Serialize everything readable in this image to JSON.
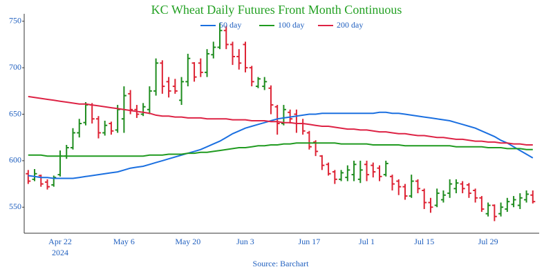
{
  "chart_data": {
    "type": "ohlc",
    "title": "KC Wheat Daily Futures Front Month Continuous",
    "source": "Source: Barchart",
    "year_label": "2024",
    "categories": [
      null,
      null,
      null,
      null,
      null,
      "Apr 22",
      null,
      null,
      null,
      null,
      null,
      null,
      null,
      null,
      null,
      "May 6",
      null,
      null,
      null,
      null,
      null,
      null,
      null,
      null,
      null,
      "May 20",
      null,
      null,
      null,
      null,
      null,
      null,
      null,
      null,
      "Jun 3",
      null,
      null,
      null,
      null,
      null,
      null,
      null,
      null,
      null,
      "Jun 17",
      null,
      null,
      null,
      null,
      null,
      null,
      null,
      null,
      "Jul 1",
      null,
      null,
      null,
      null,
      null,
      null,
      null,
      null,
      "Jul 15",
      null,
      null,
      null,
      null,
      null,
      null,
      null,
      null,
      null,
      "Jul 29",
      null,
      null,
      null,
      null,
      null,
      null,
      null
    ],
    "open": [
      586,
      580,
      584,
      577,
      574,
      585,
      605,
      614,
      630,
      641,
      660,
      645,
      630,
      640,
      633,
      645,
      672,
      655,
      650,
      655,
      675,
      705,
      685,
      680,
      665,
      685,
      705,
      705,
      695,
      714,
      722,
      740,
      725,
      712,
      725,
      700,
      680,
      680,
      678,
      658,
      640,
      652,
      650,
      640,
      630,
      620,
      605,
      596,
      588,
      580,
      582,
      585,
      580,
      596,
      595,
      592,
      585,
      583,
      578,
      572,
      562,
      578,
      568,
      555,
      552,
      558,
      565,
      570,
      575,
      574,
      568,
      560,
      543,
      552,
      543,
      548,
      553,
      552,
      558,
      563
    ],
    "high": [
      590,
      591,
      585,
      580,
      584,
      611,
      617,
      635,
      645,
      663,
      662,
      648,
      643,
      642,
      660,
      680,
      676,
      660,
      662,
      680,
      710,
      708,
      690,
      688,
      690,
      715,
      706,
      710,
      720,
      728,
      748,
      745,
      728,
      720,
      728,
      702,
      690,
      690,
      681,
      660,
      660,
      655,
      655,
      645,
      632,
      622,
      606,
      598,
      590,
      590,
      595,
      600,
      600,
      600,
      598,
      595,
      600,
      585,
      580,
      575,
      585,
      580,
      570,
      560,
      570,
      568,
      580,
      580,
      578,
      576,
      570,
      562,
      555,
      553,
      555,
      560,
      562,
      565,
      568,
      568
    ],
    "low": [
      575,
      578,
      572,
      569,
      572,
      583,
      602,
      612,
      625,
      638,
      640,
      624,
      627,
      628,
      630,
      630,
      650,
      646,
      648,
      650,
      670,
      672,
      668,
      672,
      660,
      680,
      685,
      690,
      690,
      710,
      720,
      720,
      703,
      698,
      695,
      680,
      678,
      676,
      650,
      628,
      638,
      640,
      630,
      628,
      612,
      605,
      590,
      584,
      575,
      578,
      578,
      578,
      576,
      578,
      582,
      578,
      583,
      568,
      563,
      558,
      560,
      565,
      548,
      544,
      550,
      555,
      560,
      565,
      565,
      560,
      555,
      545,
      540,
      535,
      540,
      545,
      550,
      548,
      555,
      554
    ],
    "close": [
      578,
      586,
      575,
      572,
      582,
      605,
      614,
      630,
      640,
      660,
      645,
      630,
      638,
      632,
      655,
      670,
      655,
      650,
      658,
      675,
      705,
      680,
      675,
      675,
      685,
      710,
      690,
      695,
      715,
      722,
      740,
      725,
      712,
      705,
      700,
      685,
      688,
      685,
      660,
      640,
      655,
      645,
      640,
      632,
      615,
      610,
      595,
      586,
      580,
      587,
      590,
      596,
      590,
      585,
      588,
      583,
      597,
      575,
      572,
      562,
      578,
      570,
      555,
      550,
      565,
      563,
      575,
      576,
      570,
      565,
      560,
      548,
      552,
      540,
      550,
      556,
      558,
      560,
      564,
      556
    ],
    "up_color": "#1e8c1e",
    "down_color": "#dd2233",
    "series": [
      {
        "name": "50 day",
        "color": "#1a6fe0",
        "values": [
          584,
          583,
          582,
          582,
          581,
          581,
          581,
          581,
          582,
          583,
          584,
          585,
          586,
          587,
          588,
          590,
          592,
          593,
          594,
          596,
          598,
          600,
          602,
          604,
          606,
          608,
          610,
          612,
          615,
          618,
          621,
          625,
          629,
          632,
          635,
          637,
          639,
          641,
          643,
          645,
          646,
          647,
          648,
          649,
          650,
          650,
          651,
          651,
          651,
          651,
          651,
          651,
          651,
          651,
          651,
          652,
          652,
          651,
          651,
          650,
          649,
          648,
          647,
          646,
          645,
          644,
          643,
          641,
          639,
          637,
          635,
          632,
          629,
          626,
          622,
          619,
          615,
          611,
          607,
          603
        ]
      },
      {
        "name": "100 day",
        "color": "#1f9a1f",
        "values": [
          606,
          606,
          606,
          605,
          605,
          605,
          605,
          605,
          605,
          605,
          605,
          605,
          605,
          605,
          605,
          605,
          605,
          605,
          605,
          606,
          606,
          606,
          607,
          607,
          607,
          608,
          608,
          609,
          609,
          610,
          611,
          612,
          613,
          614,
          614,
          615,
          616,
          616,
          617,
          617,
          618,
          618,
          619,
          619,
          619,
          619,
          619,
          619,
          619,
          618,
          618,
          618,
          618,
          618,
          617,
          617,
          617,
          617,
          617,
          616,
          616,
          616,
          616,
          616,
          616,
          616,
          616,
          615,
          615,
          615,
          615,
          615,
          614,
          614,
          614,
          613,
          613,
          613,
          612,
          612
        ]
      },
      {
        "name": "200 day",
        "color": "#dd2244",
        "values": [
          669,
          668,
          667,
          666,
          665,
          664,
          663,
          662,
          661,
          661,
          660,
          659,
          658,
          657,
          656,
          655,
          654,
          653,
          652,
          651,
          649,
          648,
          648,
          647,
          647,
          646,
          646,
          646,
          645,
          645,
          645,
          645,
          644,
          644,
          644,
          643,
          643,
          643,
          642,
          642,
          641,
          641,
          640,
          640,
          639,
          638,
          637,
          637,
          636,
          635,
          634,
          634,
          633,
          633,
          632,
          631,
          631,
          630,
          629,
          629,
          628,
          627,
          627,
          626,
          625,
          625,
          624,
          623,
          623,
          622,
          621,
          621,
          620,
          620,
          619,
          619,
          618,
          618,
          617,
          617
        ]
      }
    ],
    "ylim": [
      522,
      758
    ],
    "yticks": [
      550,
      600,
      650,
      700,
      750
    ],
    "grid": false,
    "legend": "top"
  }
}
